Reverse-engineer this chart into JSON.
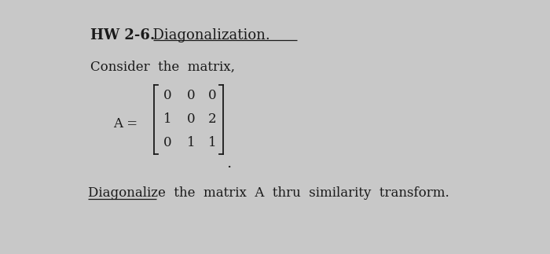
{
  "bg_color": "#c8c8c8",
  "title_bold": "HW 2-6.",
  "title_normal": "  Diagonalization.",
  "consider_text": "Consider  the  matrix,",
  "matrix_rows": [
    [
      "0",
      "0",
      "0"
    ],
    [
      "1",
      "0",
      "2"
    ],
    [
      "0",
      "1",
      "1"
    ]
  ],
  "bottom_text": "Diagonalize  the  matrix  A  thru  similarity  transform.",
  "font_family": "serif",
  "title_fontsize": 13,
  "body_fontsize": 12,
  "matrix_fontsize": 12,
  "text_color": "#1a1a1a",
  "underline_color": "#1a1a1a"
}
